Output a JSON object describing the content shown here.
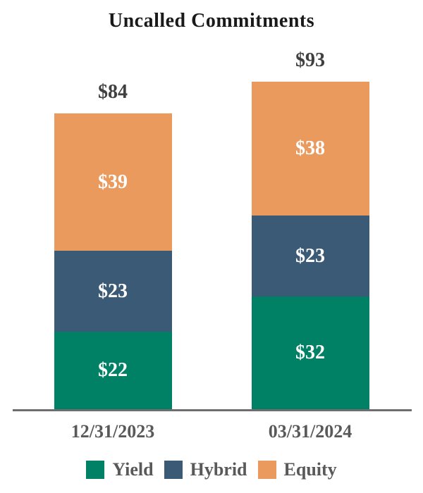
{
  "title": "Uncalled Commitments",
  "chart_data": {
    "type": "bar",
    "stacked": true,
    "title": "Uncalled Commitments",
    "categories": [
      "12/31/2023",
      "03/31/2024"
    ],
    "series": [
      {
        "name": "Yield",
        "color": "#008064",
        "values": [
          22,
          32
        ]
      },
      {
        "name": "Hybrid",
        "color": "#3B5A75",
        "values": [
          23,
          23
        ]
      },
      {
        "name": "Equity",
        "color": "#EB9A5E",
        "values": [
          39,
          38
        ]
      }
    ],
    "totals": [
      84,
      93
    ],
    "value_prefix": "$",
    "xlabel": "",
    "ylabel": "",
    "grid": false,
    "y_axis_visible": false,
    "baseline_visible": true,
    "legend_position": "bottom"
  },
  "colors": {
    "background": "#FFFFFF",
    "title": "#1A1A1A",
    "total_label": "#404040",
    "category_label": "#595959",
    "legend_label": "#595959",
    "value_label": "#FFFFFF",
    "baseline": "#6E6E6E"
  }
}
